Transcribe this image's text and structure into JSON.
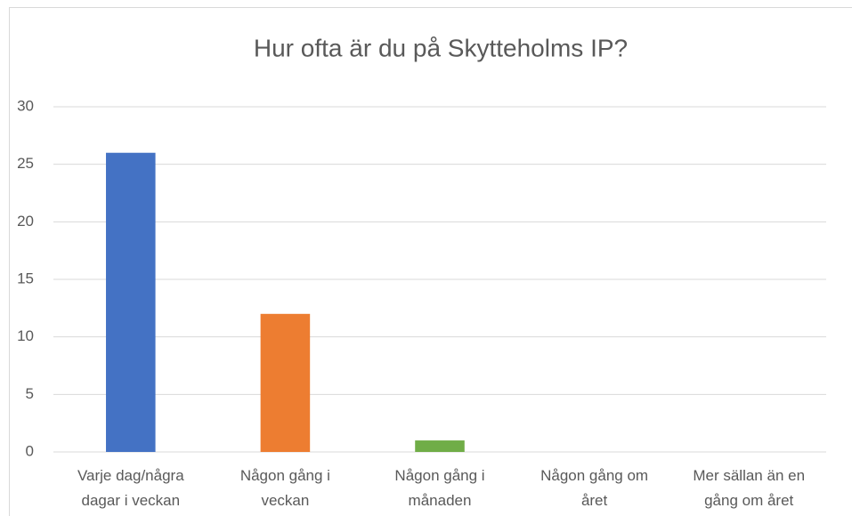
{
  "chart_data": {
    "type": "bar",
    "title": "Hur ofta är du på Skytteholms IP?",
    "categories": [
      "Varje dag/några dagar i veckan",
      "Någon gång i veckan",
      "Någon gång i månaden",
      "Någon gång om året",
      "Mer sällan än en gång om året"
    ],
    "values": [
      26,
      12,
      1,
      0,
      0
    ],
    "colors": [
      "#4472c4",
      "#ed7d31",
      "#70ad47",
      "#a5a5a5",
      "#ffc000"
    ],
    "ylim": [
      0,
      30
    ],
    "yticks": [
      0,
      5,
      10,
      15,
      20,
      25,
      30
    ],
    "grid": true
  }
}
